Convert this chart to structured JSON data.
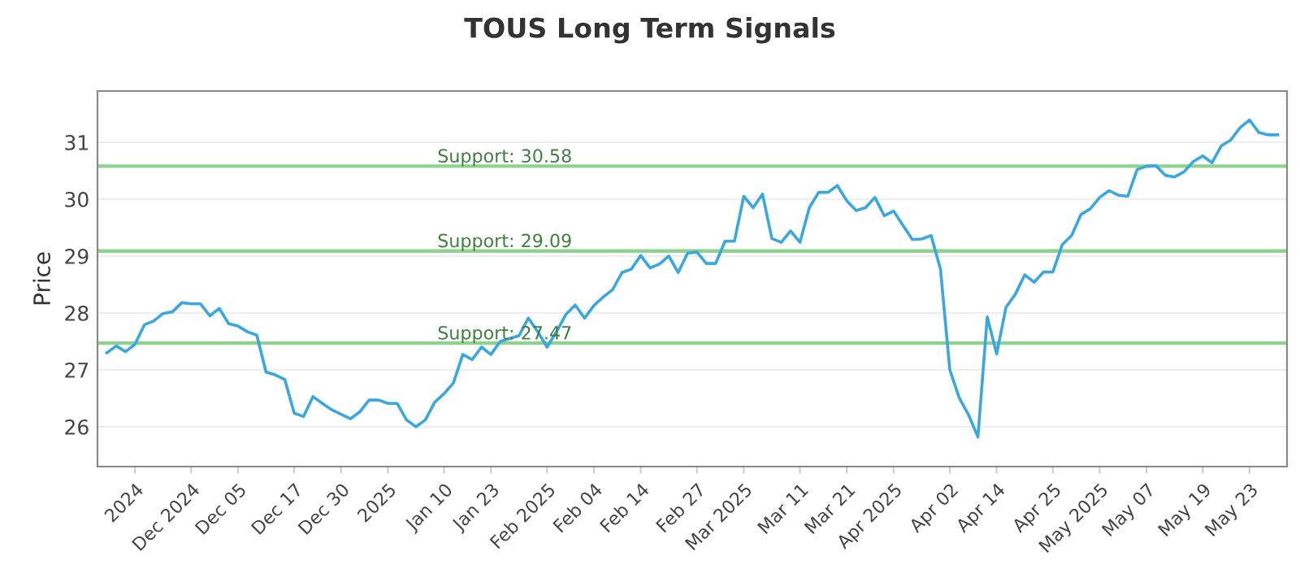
{
  "chart_data": {
    "type": "line",
    "title": "TOUS Long Term Signals",
    "ylabel": "Price",
    "categories": [
      null,
      null,
      null,
      "2024",
      null,
      null,
      null,
      null,
      null,
      "Dec 2024",
      null,
      null,
      null,
      null,
      "Dec 05",
      null,
      null,
      null,
      null,
      null,
      "Dec 17",
      null,
      null,
      null,
      null,
      "Dec 30",
      null,
      null,
      null,
      null,
      "2025",
      null,
      null,
      null,
      null,
      null,
      "Jan 10",
      null,
      null,
      null,
      null,
      "Jan 23",
      null,
      null,
      null,
      null,
      null,
      "Feb 2025",
      null,
      null,
      null,
      null,
      "Feb 04",
      null,
      null,
      null,
      null,
      "Feb 14",
      null,
      null,
      null,
      null,
      null,
      "Feb 27",
      null,
      null,
      null,
      null,
      "Mar 2025",
      null,
      null,
      null,
      null,
      null,
      "Mar 11",
      null,
      null,
      null,
      null,
      "Mar 21",
      null,
      null,
      null,
      null,
      "Apr 2025",
      null,
      null,
      null,
      null,
      null,
      "Apr 02",
      null,
      null,
      null,
      null,
      "Apr 14",
      null,
      null,
      null,
      null,
      null,
      "Apr 25",
      null,
      null,
      null,
      null,
      "May 2025",
      null,
      null,
      null,
      null,
      "May 07",
      null,
      null,
      null,
      null,
      null,
      "May 19",
      null,
      null,
      null,
      null,
      "May 23",
      null,
      null,
      null
    ],
    "series": [
      {
        "color": "#3aa8dc",
        "values": [
          27.3,
          27.42,
          27.32,
          27.45,
          27.79,
          27.86,
          27.99,
          28.02,
          28.18,
          28.16,
          28.16,
          27.95,
          28.08,
          27.81,
          27.77,
          27.67,
          27.61,
          26.96,
          26.91,
          26.83,
          26.24,
          26.18,
          26.53,
          26.41,
          26.3,
          26.22,
          26.14,
          26.26,
          26.47,
          26.47,
          26.41,
          26.41,
          26.12,
          26.0,
          26.12,
          26.43,
          26.58,
          26.77,
          27.27,
          27.18,
          27.4,
          27.27,
          27.5,
          27.55,
          27.6,
          27.91,
          27.67,
          27.4,
          27.67,
          27.97,
          28.14,
          27.91,
          28.13,
          28.28,
          28.41,
          28.71,
          28.77,
          29.01,
          28.79,
          28.86,
          29.0,
          28.71,
          29.05,
          29.07,
          28.87,
          28.87,
          29.26,
          29.26,
          30.05,
          29.85,
          30.09,
          29.31,
          29.24,
          29.44,
          29.24,
          29.85,
          30.12,
          30.12,
          30.24,
          29.97,
          29.8,
          29.85,
          30.03,
          29.71,
          29.79,
          29.54,
          29.29,
          29.3,
          29.36,
          28.77,
          27.0,
          26.51,
          26.21,
          25.82,
          27.93,
          27.28,
          28.1,
          28.33,
          28.67,
          28.54,
          28.72,
          28.72,
          29.2,
          29.36,
          29.73,
          29.83,
          30.03,
          30.15,
          30.07,
          30.05,
          30.52,
          30.58,
          30.59,
          30.42,
          30.39,
          30.48,
          30.66,
          30.76,
          30.64,
          30.94,
          31.04,
          31.26,
          31.39,
          31.17,
          31.13,
          31.13
        ]
      }
    ],
    "ylim": [
      25.3,
      31.9
    ],
    "yticks": [
      26,
      27,
      28,
      29,
      30,
      31
    ],
    "grid": "y",
    "marker": "none",
    "line_style": "solid",
    "ref_lines": [
      {
        "axis": "y",
        "value": 30.58,
        "label": "Support: 30.58",
        "color": "#8fd18f"
      },
      {
        "axis": "y",
        "value": 29.09,
        "label": "Support: 29.09",
        "color": "#8fd18f"
      },
      {
        "axis": "y",
        "value": 27.47,
        "label": "Support: 27.47",
        "color": "#8fd18f"
      }
    ]
  }
}
